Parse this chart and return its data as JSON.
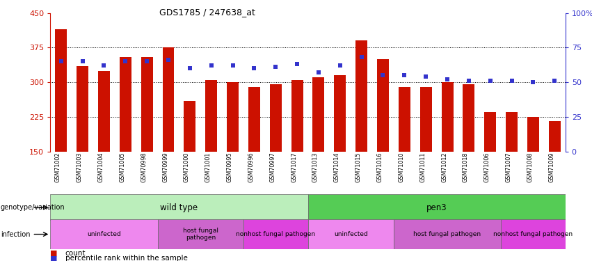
{
  "title": "GDS1785 / 247638_at",
  "samples": [
    "GSM71002",
    "GSM71003",
    "GSM71004",
    "GSM71005",
    "GSM70998",
    "GSM70999",
    "GSM71000",
    "GSM71001",
    "GSM70995",
    "GSM70996",
    "GSM70997",
    "GSM71017",
    "GSM71013",
    "GSM71014",
    "GSM71015",
    "GSM71016",
    "GSM71010",
    "GSM71011",
    "GSM71012",
    "GSM71018",
    "GSM71006",
    "GSM71007",
    "GSM71008",
    "GSM71009"
  ],
  "counts": [
    415,
    335,
    325,
    355,
    355,
    375,
    260,
    305,
    300,
    290,
    295,
    305,
    310,
    315,
    390,
    350,
    290,
    290,
    300,
    295,
    235,
    235,
    225,
    215
  ],
  "percentiles": [
    65,
    65,
    62,
    65,
    65,
    66,
    60,
    62,
    62,
    60,
    61,
    63,
    57,
    62,
    68,
    55,
    55,
    54,
    52,
    51,
    51,
    51,
    50,
    51
  ],
  "ymin": 150,
  "ymax": 450,
  "bar_color": "#cc1100",
  "marker_color": "#3333cc",
  "xtick_bg": "#cccccc",
  "genotype_groups": [
    {
      "label": "wild type",
      "start": 0,
      "end": 11,
      "color": "#bbeebb"
    },
    {
      "label": "pen3",
      "start": 12,
      "end": 23,
      "color": "#55cc55"
    }
  ],
  "infection_groups": [
    {
      "label": "uninfected",
      "start": 0,
      "end": 4,
      "color": "#ee88ee"
    },
    {
      "label": "host fungal\npathogen",
      "start": 5,
      "end": 8,
      "color": "#cc66cc"
    },
    {
      "label": "nonhost fungal pathogen",
      "start": 9,
      "end": 11,
      "color": "#dd44dd"
    },
    {
      "label": "uninfected",
      "start": 12,
      "end": 15,
      "color": "#ee88ee"
    },
    {
      "label": "host fungal pathogen",
      "start": 16,
      "end": 20,
      "color": "#cc66cc"
    },
    {
      "label": "nonhost fungal pathogen",
      "start": 21,
      "end": 23,
      "color": "#dd44dd"
    }
  ],
  "genotype_label": "genotype/variation",
  "infection_label": "infection"
}
